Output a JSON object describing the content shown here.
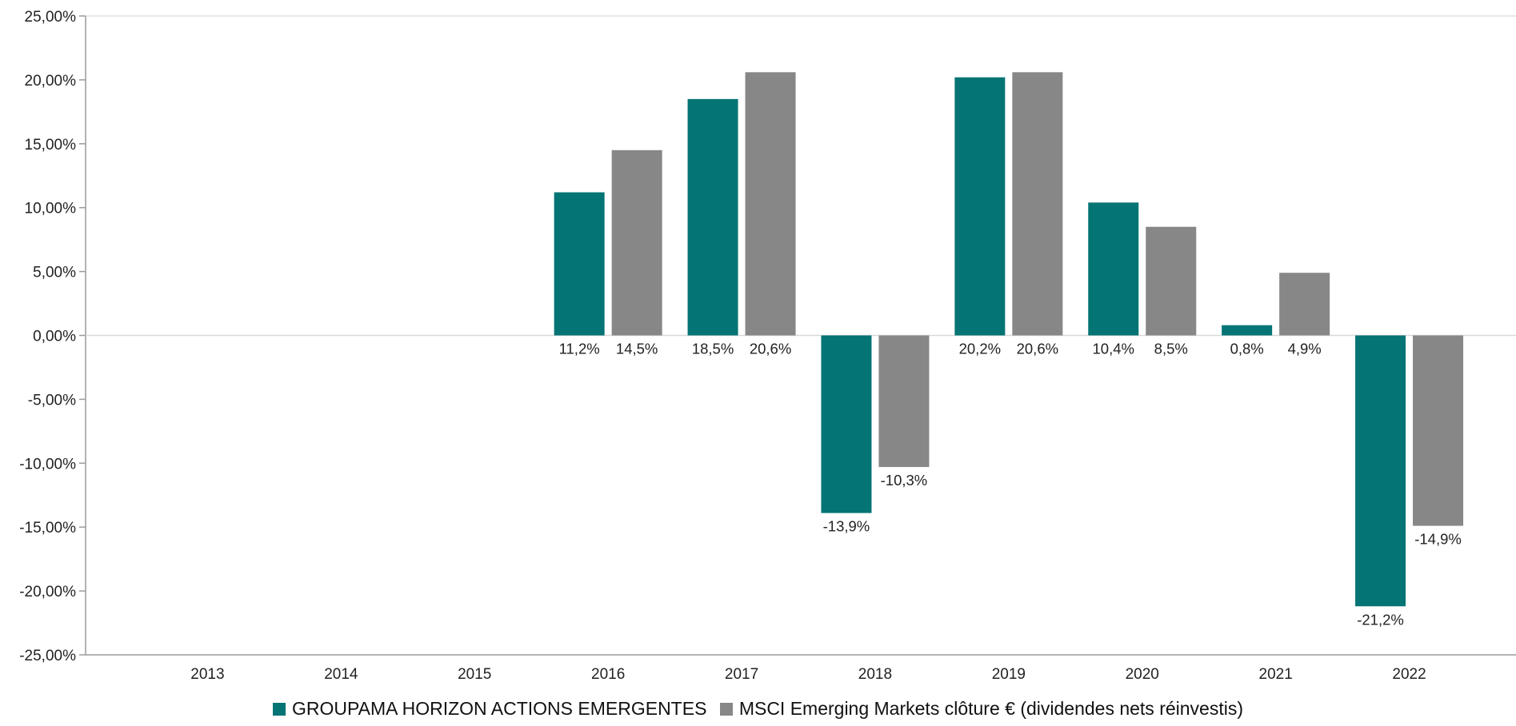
{
  "chart_data": {
    "type": "bar",
    "categories": [
      "2013",
      "2014",
      "2015",
      "2016",
      "2017",
      "2018",
      "2019",
      "2020",
      "2021",
      "2022"
    ],
    "series": [
      {
        "name": "GROUPAMA HORIZON ACTIONS EMERGENTES",
        "color": "#047474",
        "values": [
          null,
          null,
          null,
          11.2,
          18.5,
          -13.9,
          20.2,
          10.4,
          0.8,
          -21.2
        ],
        "labels": [
          "",
          "",
          "",
          "11,2%",
          "18,5%",
          "-13,9%",
          "20,2%",
          "10,4%",
          "0,8%",
          "-21,2%"
        ]
      },
      {
        "name": "MSCI Emerging Markets clôture € (dividendes nets réinvestis)",
        "color": "#878787",
        "values": [
          null,
          null,
          null,
          14.5,
          20.6,
          -10.3,
          20.6,
          8.5,
          4.9,
          -14.9
        ],
        "labels": [
          "",
          "",
          "",
          "14,5%",
          "20,6%",
          "-10,3%",
          "20,6%",
          "8,5%",
          "4,9%",
          "-14,9%"
        ]
      }
    ],
    "ylim": [
      -25,
      25
    ],
    "yticks": [
      25,
      20,
      15,
      10,
      5,
      0,
      -5,
      -10,
      -15,
      -20,
      -25
    ],
    "ytick_labels": [
      "25,00%",
      "20,00%",
      "15,00%",
      "10,00%",
      "5,00%",
      "0,00%",
      "-5,00%",
      "-10,00%",
      "-15,00%",
      "-20,00%",
      "-25,00%"
    ],
    "title": "",
    "xlabel": "",
    "ylabel": "",
    "grid": false,
    "legend_position": "bottom-center"
  }
}
